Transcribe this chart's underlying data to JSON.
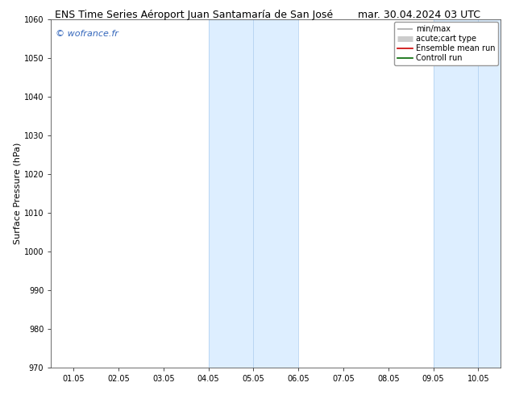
{
  "title": "ENS Time Series Aéroport Juan Santamaría de San José",
  "date_label": "mar. 30.04.2024 03 UTC",
  "ylabel": "Surface Pressure (hPa)",
  "ylim": [
    970,
    1060
  ],
  "yticks": [
    970,
    980,
    990,
    1000,
    1010,
    1020,
    1030,
    1040,
    1050,
    1060
  ],
  "xlabels": [
    "01.05",
    "02.05",
    "03.05",
    "04.05",
    "05.05",
    "06.05",
    "07.05",
    "08.05",
    "09.05",
    "10.05"
  ],
  "shaded_regions": [
    {
      "xstart": 3.0,
      "xend": 3.5,
      "color": "#ddeeff"
    },
    {
      "xstart": 3.5,
      "xend": 4.0,
      "color": "#ddeeff"
    },
    {
      "xstart": 4.0,
      "xend": 5.0,
      "color": "#ddeeff"
    },
    {
      "xstart": 8.0,
      "xend": 8.5,
      "color": "#ddeeff"
    },
    {
      "xstart": 8.5,
      "xend": 9.0,
      "color": "#ddeeff"
    }
  ],
  "shaded_pairs": [
    {
      "xstart": 3.0,
      "xend": 5.0
    },
    {
      "xstart": 8.0,
      "xend": 9.0
    }
  ],
  "shade_color": "#ddeeff",
  "watermark": "© wofrance.fr",
  "watermark_color": "#3366bb",
  "background_color": "#ffffff",
  "plot_bg_color": "#ffffff",
  "legend_entries": [
    {
      "label": "min/max",
      "color": "#aaaaaa",
      "lw": 1.2
    },
    {
      "label": "acute;cart type",
      "color": "#cccccc",
      "lw": 5
    },
    {
      "label": "Ensemble mean run",
      "color": "#cc0000",
      "lw": 1.2
    },
    {
      "label": "Controll run",
      "color": "#006600",
      "lw": 1.2
    }
  ],
  "title_fontsize": 9,
  "date_fontsize": 9,
  "ylabel_fontsize": 8,
  "tick_fontsize": 7,
  "watermark_fontsize": 8,
  "legend_fontsize": 7
}
